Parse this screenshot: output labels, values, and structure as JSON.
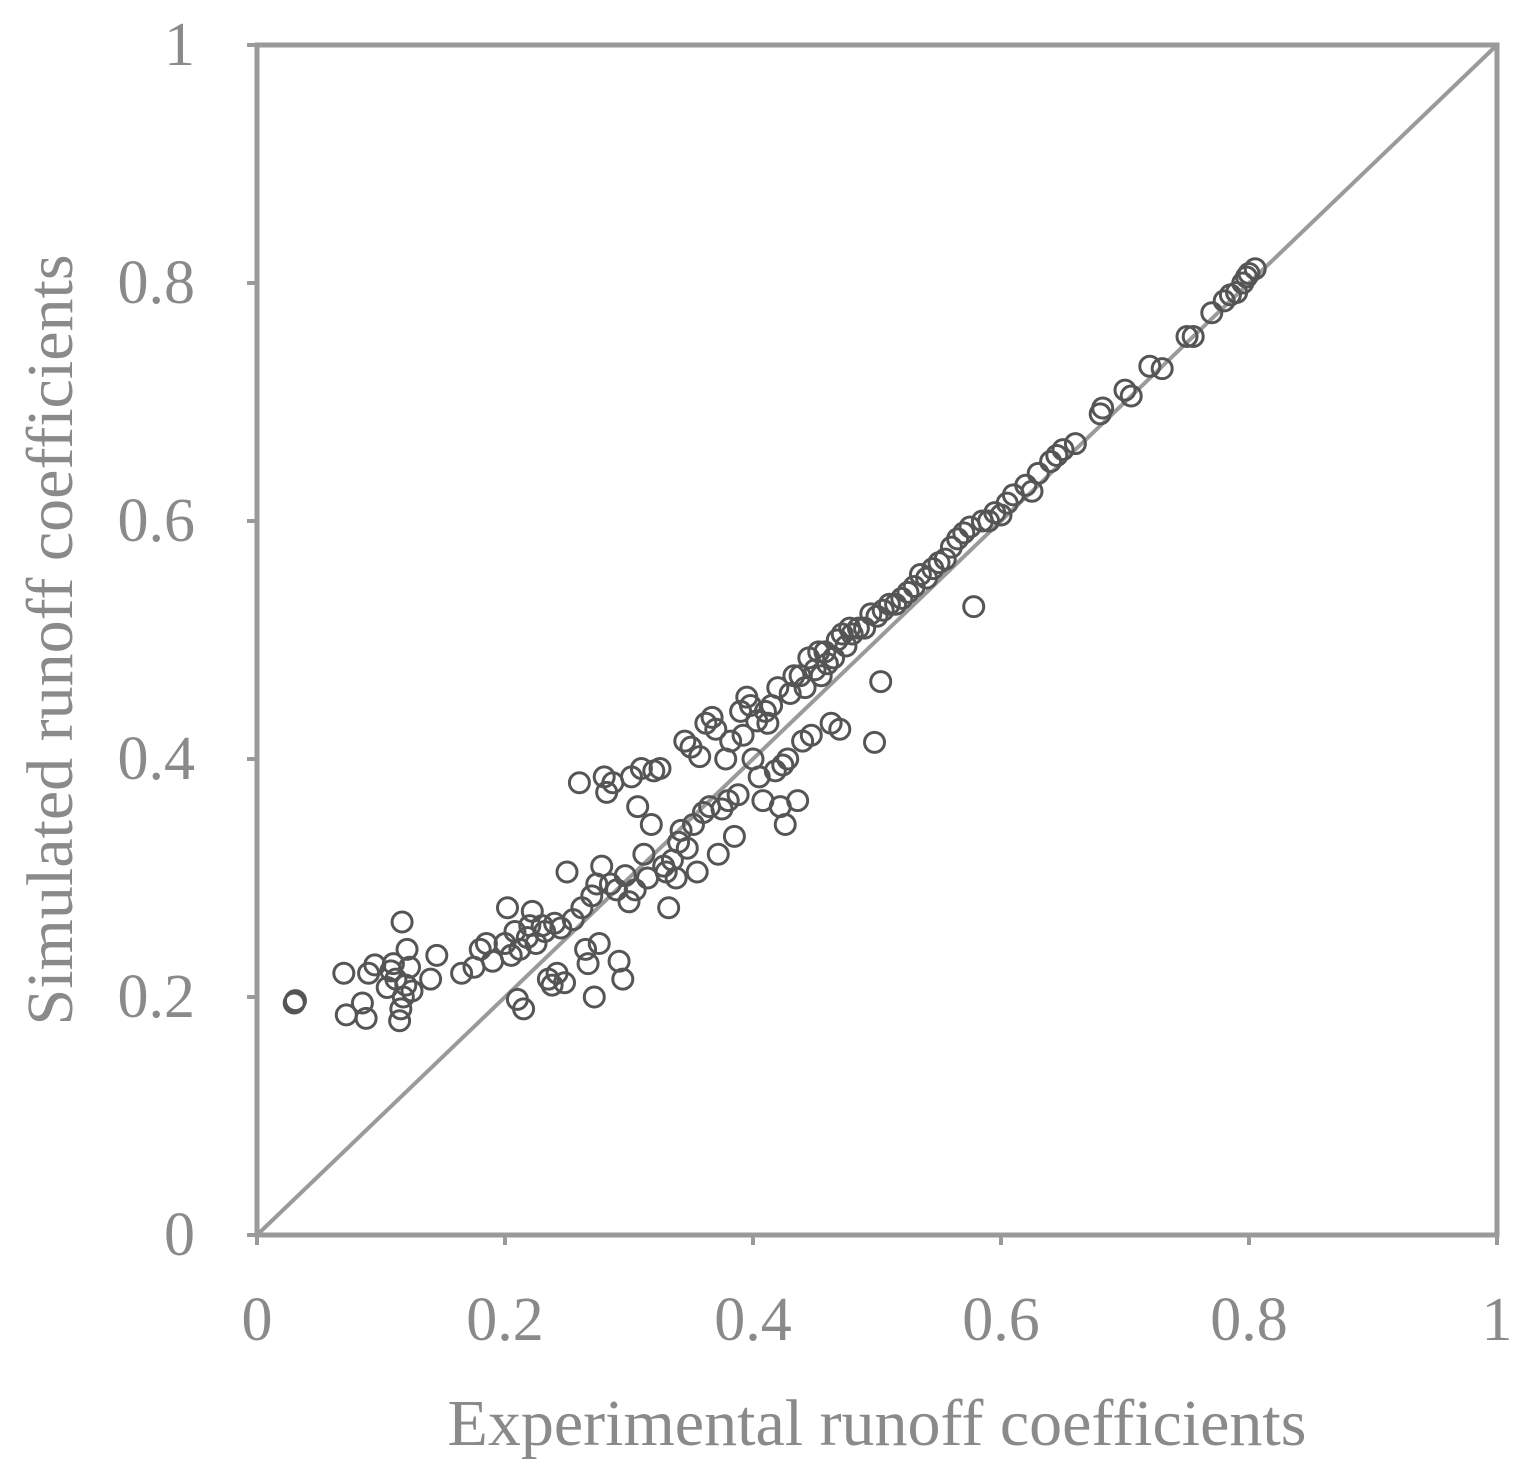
{
  "chart_data": {
    "type": "scatter",
    "title": "",
    "xlabel": "Experimental runoff coefficients",
    "ylabel": "Simulated runoff coefficients",
    "xlim": [
      0,
      1
    ],
    "ylim": [
      0,
      1
    ],
    "x_ticks": [
      "0",
      "0.2",
      "0.4",
      "0.6",
      "0.8",
      "1"
    ],
    "y_ticks": [
      "0",
      "0.2",
      "0.4",
      "0.6",
      "0.8",
      "1"
    ],
    "reference_line": "1:1",
    "grid": false,
    "legend": "none",
    "colors": {
      "frame": "#9a9a9a",
      "text": "#8a8a8a",
      "markers": "#555555"
    },
    "series": [
      {
        "marker": "open-circle",
        "points": [
          [
            0.03,
            0.195
          ],
          [
            0.031,
            0.197
          ],
          [
            0.07,
            0.22
          ],
          [
            0.072,
            0.185
          ],
          [
            0.085,
            0.195
          ],
          [
            0.088,
            0.182
          ],
          [
            0.09,
            0.22
          ],
          [
            0.095,
            0.227
          ],
          [
            0.105,
            0.208
          ],
          [
            0.108,
            0.222
          ],
          [
            0.11,
            0.228
          ],
          [
            0.112,
            0.215
          ],
          [
            0.115,
            0.18
          ],
          [
            0.116,
            0.19
          ],
          [
            0.117,
            0.263
          ],
          [
            0.118,
            0.2
          ],
          [
            0.12,
            0.21
          ],
          [
            0.121,
            0.24
          ],
          [
            0.123,
            0.225
          ],
          [
            0.125,
            0.205
          ],
          [
            0.14,
            0.215
          ],
          [
            0.145,
            0.235
          ],
          [
            0.165,
            0.22
          ],
          [
            0.175,
            0.225
          ],
          [
            0.18,
            0.24
          ],
          [
            0.185,
            0.245
          ],
          [
            0.19,
            0.23
          ],
          [
            0.2,
            0.245
          ],
          [
            0.202,
            0.275
          ],
          [
            0.205,
            0.235
          ],
          [
            0.208,
            0.255
          ],
          [
            0.21,
            0.198
          ],
          [
            0.212,
            0.24
          ],
          [
            0.215,
            0.19
          ],
          [
            0.218,
            0.25
          ],
          [
            0.22,
            0.26
          ],
          [
            0.222,
            0.272
          ],
          [
            0.225,
            0.245
          ],
          [
            0.23,
            0.26
          ],
          [
            0.232,
            0.255
          ],
          [
            0.235,
            0.215
          ],
          [
            0.238,
            0.21
          ],
          [
            0.24,
            0.262
          ],
          [
            0.242,
            0.22
          ],
          [
            0.245,
            0.258
          ],
          [
            0.248,
            0.212
          ],
          [
            0.25,
            0.305
          ],
          [
            0.255,
            0.265
          ],
          [
            0.26,
            0.38
          ],
          [
            0.262,
            0.275
          ],
          [
            0.265,
            0.24
          ],
          [
            0.267,
            0.228
          ],
          [
            0.27,
            0.285
          ],
          [
            0.272,
            0.2
          ],
          [
            0.274,
            0.295
          ],
          [
            0.276,
            0.245
          ],
          [
            0.278,
            0.31
          ],
          [
            0.28,
            0.385
          ],
          [
            0.282,
            0.372
          ],
          [
            0.285,
            0.295
          ],
          [
            0.287,
            0.38
          ],
          [
            0.29,
            0.29
          ],
          [
            0.292,
            0.23
          ],
          [
            0.295,
            0.215
          ],
          [
            0.297,
            0.302
          ],
          [
            0.3,
            0.28
          ],
          [
            0.302,
            0.385
          ],
          [
            0.305,
            0.29
          ],
          [
            0.307,
            0.36
          ],
          [
            0.31,
            0.392
          ],
          [
            0.312,
            0.32
          ],
          [
            0.315,
            0.3
          ],
          [
            0.318,
            0.345
          ],
          [
            0.32,
            0.39
          ],
          [
            0.325,
            0.392
          ],
          [
            0.328,
            0.31
          ],
          [
            0.33,
            0.305
          ],
          [
            0.332,
            0.275
          ],
          [
            0.335,
            0.315
          ],
          [
            0.338,
            0.3
          ],
          [
            0.34,
            0.33
          ],
          [
            0.342,
            0.34
          ],
          [
            0.345,
            0.415
          ],
          [
            0.347,
            0.325
          ],
          [
            0.35,
            0.41
          ],
          [
            0.352,
            0.345
          ],
          [
            0.355,
            0.305
          ],
          [
            0.357,
            0.402
          ],
          [
            0.36,
            0.355
          ],
          [
            0.362,
            0.43
          ],
          [
            0.365,
            0.36
          ],
          [
            0.367,
            0.435
          ],
          [
            0.37,
            0.425
          ],
          [
            0.372,
            0.32
          ],
          [
            0.375,
            0.358
          ],
          [
            0.378,
            0.4
          ],
          [
            0.38,
            0.365
          ],
          [
            0.382,
            0.415
          ],
          [
            0.385,
            0.335
          ],
          [
            0.388,
            0.37
          ],
          [
            0.39,
            0.44
          ],
          [
            0.392,
            0.42
          ],
          [
            0.395,
            0.452
          ],
          [
            0.398,
            0.445
          ],
          [
            0.4,
            0.4
          ],
          [
            0.403,
            0.432
          ],
          [
            0.405,
            0.385
          ],
          [
            0.408,
            0.365
          ],
          [
            0.41,
            0.44
          ],
          [
            0.412,
            0.43
          ],
          [
            0.415,
            0.445
          ],
          [
            0.418,
            0.39
          ],
          [
            0.42,
            0.46
          ],
          [
            0.422,
            0.36
          ],
          [
            0.424,
            0.395
          ],
          [
            0.426,
            0.345
          ],
          [
            0.428,
            0.4
          ],
          [
            0.43,
            0.455
          ],
          [
            0.433,
            0.47
          ],
          [
            0.436,
            0.365
          ],
          [
            0.438,
            0.47
          ],
          [
            0.44,
            0.415
          ],
          [
            0.442,
            0.46
          ],
          [
            0.445,
            0.485
          ],
          [
            0.447,
            0.42
          ],
          [
            0.45,
            0.475
          ],
          [
            0.453,
            0.49
          ],
          [
            0.455,
            0.47
          ],
          [
            0.458,
            0.49
          ],
          [
            0.46,
            0.48
          ],
          [
            0.463,
            0.43
          ],
          [
            0.465,
            0.485
          ],
          [
            0.468,
            0.5
          ],
          [
            0.47,
            0.425
          ],
          [
            0.472,
            0.505
          ],
          [
            0.475,
            0.495
          ],
          [
            0.478,
            0.51
          ],
          [
            0.48,
            0.505
          ],
          [
            0.485,
            0.51
          ],
          [
            0.49,
            0.51
          ],
          [
            0.495,
            0.522
          ],
          [
            0.498,
            0.414
          ],
          [
            0.5,
            0.52
          ],
          [
            0.503,
            0.465
          ],
          [
            0.505,
            0.525
          ],
          [
            0.51,
            0.53
          ],
          [
            0.515,
            0.53
          ],
          [
            0.52,
            0.535
          ],
          [
            0.525,
            0.54
          ],
          [
            0.53,
            0.545
          ],
          [
            0.535,
            0.555
          ],
          [
            0.54,
            0.552
          ],
          [
            0.545,
            0.56
          ],
          [
            0.55,
            0.565
          ],
          [
            0.555,
            0.568
          ],
          [
            0.56,
            0.578
          ],
          [
            0.565,
            0.585
          ],
          [
            0.57,
            0.59
          ],
          [
            0.575,
            0.595
          ],
          [
            0.578,
            0.528
          ],
          [
            0.585,
            0.6
          ],
          [
            0.59,
            0.6
          ],
          [
            0.595,
            0.607
          ],
          [
            0.6,
            0.605
          ],
          [
            0.605,
            0.615
          ],
          [
            0.61,
            0.622
          ],
          [
            0.62,
            0.63
          ],
          [
            0.625,
            0.625
          ],
          [
            0.63,
            0.64
          ],
          [
            0.64,
            0.65
          ],
          [
            0.645,
            0.655
          ],
          [
            0.65,
            0.66
          ],
          [
            0.66,
            0.665
          ],
          [
            0.68,
            0.69
          ],
          [
            0.682,
            0.695
          ],
          [
            0.7,
            0.71
          ],
          [
            0.705,
            0.705
          ],
          [
            0.72,
            0.73
          ],
          [
            0.73,
            0.728
          ],
          [
            0.75,
            0.755
          ],
          [
            0.755,
            0.755
          ],
          [
            0.77,
            0.775
          ],
          [
            0.78,
            0.785
          ],
          [
            0.785,
            0.79
          ],
          [
            0.79,
            0.792
          ],
          [
            0.795,
            0.8
          ],
          [
            0.798,
            0.805
          ],
          [
            0.8,
            0.808
          ],
          [
            0.805,
            0.812
          ]
        ]
      }
    ]
  }
}
